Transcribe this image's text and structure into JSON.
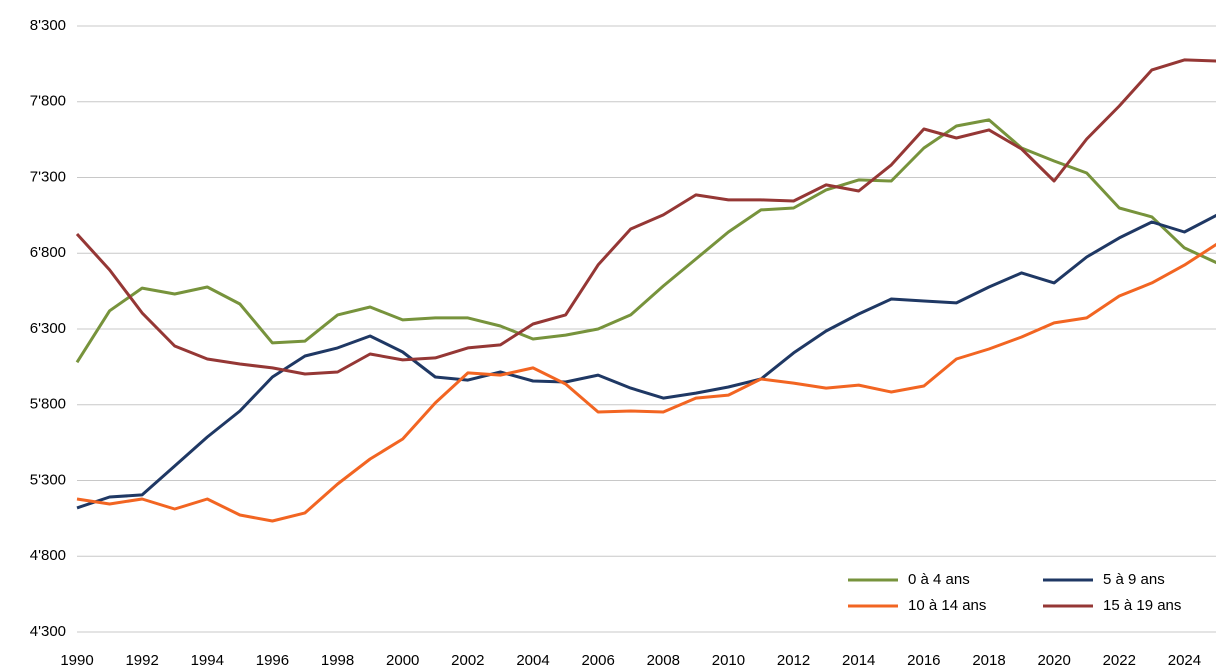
{
  "chart_data": {
    "type": "line",
    "x": [
      1990,
      1991,
      1992,
      1993,
      1994,
      1995,
      1996,
      1997,
      1998,
      1999,
      2000,
      2001,
      2002,
      2003,
      2004,
      2005,
      2006,
      2007,
      2008,
      2009,
      2010,
      2011,
      2012,
      2013,
      2014,
      2015,
      2016,
      2017,
      2018,
      2019,
      2020,
      2021,
      2022,
      2023,
      2024,
      2025
    ],
    "series": [
      {
        "name": "0 à 4 ans",
        "color": "#77933c",
        "values": [
          6080,
          6420,
          6570,
          6531,
          6577,
          6465,
          6208,
          6220,
          6393,
          6445,
          6360,
          6373,
          6373,
          6320,
          6234,
          6260,
          6300,
          6393,
          6584,
          6762,
          6940,
          7086,
          7099,
          7218,
          7284,
          7277,
          7495,
          7640,
          7680,
          7495,
          7409,
          7330,
          7099,
          7040,
          6835,
          6736
        ]
      },
      {
        "name": "5 à 9 ans",
        "color": "#1f3864",
        "values": [
          5119,
          5191,
          5205,
          5396,
          5587,
          5759,
          5983,
          6122,
          6175,
          6254,
          6148,
          5983,
          5963,
          6016,
          5957,
          5950,
          5996,
          5910,
          5844,
          5877,
          5917,
          5970,
          6142,
          6287,
          6399,
          6498,
          6485,
          6472,
          6577,
          6670,
          6604,
          6775,
          6901,
          7006,
          6940,
          7052
        ]
      },
      {
        "name": "10 à 14 ans",
        "color": "#f26522",
        "values": [
          5178,
          5145,
          5178,
          5112,
          5178,
          5072,
          5033,
          5086,
          5277,
          5442,
          5574,
          5812,
          6010,
          5996,
          6043,
          5937,
          5752,
          5759,
          5752,
          5844,
          5864,
          5970,
          5943,
          5910,
          5930,
          5884,
          5924,
          6102,
          6168,
          6247,
          6340,
          6373,
          6518,
          6604,
          6722,
          6861
        ]
      },
      {
        "name": "15 à 19 ans",
        "color": "#953735",
        "values": [
          6927,
          6690,
          6406,
          6188,
          6102,
          6069,
          6043,
          6003,
          6016,
          6135,
          6096,
          6109,
          6175,
          6195,
          6333,
          6393,
          6723,
          6960,
          7053,
          7185,
          7152,
          7152,
          7145,
          7251,
          7211,
          7383,
          7620,
          7561,
          7614,
          7488,
          7277,
          7554,
          7772,
          8010,
          8076,
          8069
        ]
      }
    ],
    "xlim": [
      1990,
      2025
    ],
    "xticks": [
      1990,
      1992,
      1994,
      1996,
      1998,
      2000,
      2002,
      2004,
      2006,
      2008,
      2010,
      2012,
      2014,
      2016,
      2018,
      2020,
      2022,
      2024
    ],
    "ylim": [
      4300,
      8300
    ],
    "yticks": [
      {
        "value": 4300,
        "label": "4'300"
      },
      {
        "value": 4800,
        "label": "4'800"
      },
      {
        "value": 5300,
        "label": "5'300"
      },
      {
        "value": 5800,
        "label": "5'800"
      },
      {
        "value": 6300,
        "label": "6'300"
      },
      {
        "value": 6800,
        "label": "6'800"
      },
      {
        "value": 7300,
        "label": "7'300"
      },
      {
        "value": 7800,
        "label": "7'800"
      },
      {
        "value": 8300,
        "label": "8'300"
      }
    ],
    "grid": true,
    "legend": "bottom-right"
  }
}
